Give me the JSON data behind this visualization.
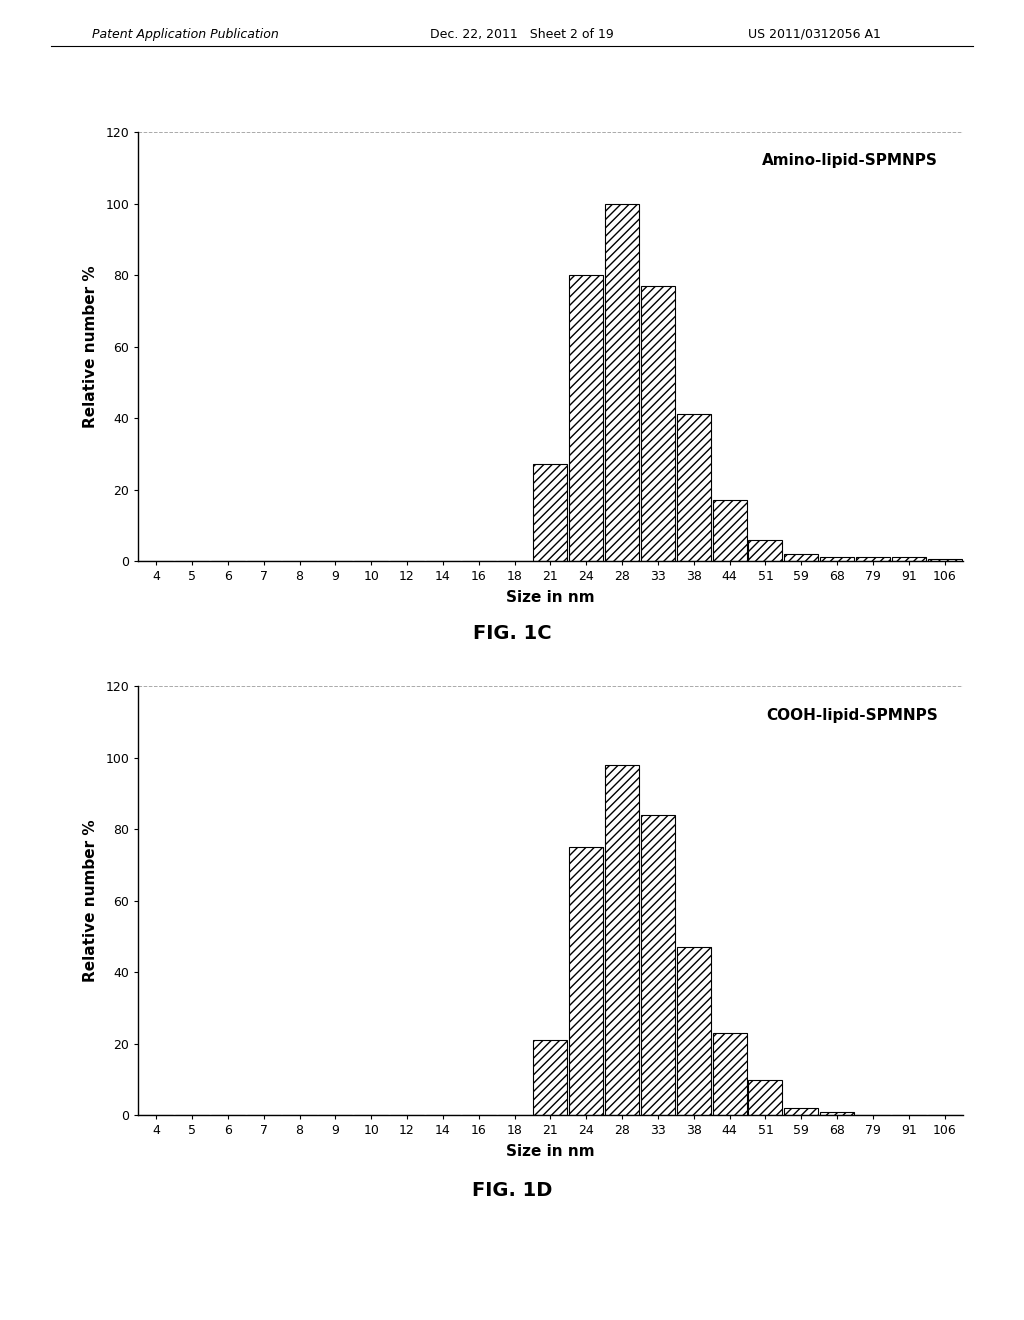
{
  "fig1c": {
    "title": "Amino-lipid-SPMNPS",
    "xlabel": "Size in nm",
    "ylabel": "Relative number %",
    "fig_label": "FIG. 1C",
    "categories": [
      "4",
      "5",
      "6",
      "7",
      "8",
      "9",
      "10",
      "12",
      "14",
      "16",
      "18",
      "21",
      "24",
      "28",
      "33",
      "38",
      "44",
      "51",
      "59",
      "68",
      "79",
      "91",
      "106"
    ],
    "values": [
      0,
      0,
      0,
      0,
      0,
      0,
      0,
      0,
      0,
      0,
      0,
      27,
      80,
      100,
      77,
      41,
      17,
      6,
      2,
      1,
      1,
      1,
      0.5
    ],
    "ylim": [
      0,
      120
    ],
    "yticks": [
      0,
      20,
      40,
      60,
      80,
      100,
      120
    ]
  },
  "fig1d": {
    "title": "COOH-lipid-SPMNPS",
    "xlabel": "Size in nm",
    "ylabel": "Relative number %",
    "fig_label": "FIG. 1D",
    "categories": [
      "4",
      "5",
      "6",
      "7",
      "8",
      "9",
      "10",
      "12",
      "14",
      "16",
      "18",
      "21",
      "24",
      "28",
      "33",
      "38",
      "44",
      "51",
      "59",
      "68",
      "79",
      "91",
      "106"
    ],
    "values": [
      0,
      0,
      0,
      0,
      0,
      0,
      0,
      0,
      0,
      0,
      0,
      21,
      75,
      98,
      84,
      47,
      23,
      10,
      2,
      1,
      0,
      0,
      0
    ],
    "ylim": [
      0,
      120
    ],
    "yticks": [
      0,
      20,
      40,
      60,
      80,
      100,
      120
    ]
  },
  "header_left": "Patent Application Publication",
  "header_mid": "Dec. 22, 2011   Sheet 2 of 19",
  "header_right": "US 2011/0312056 A1",
  "hatch_pattern": "////",
  "bar_edgecolor": "#000000",
  "bar_facecolor": "#ffffff",
  "background_color": "#ffffff",
  "title_text_size": 11,
  "axis_label_size": 11,
  "tick_label_size": 9,
  "fig_label_size": 14
}
